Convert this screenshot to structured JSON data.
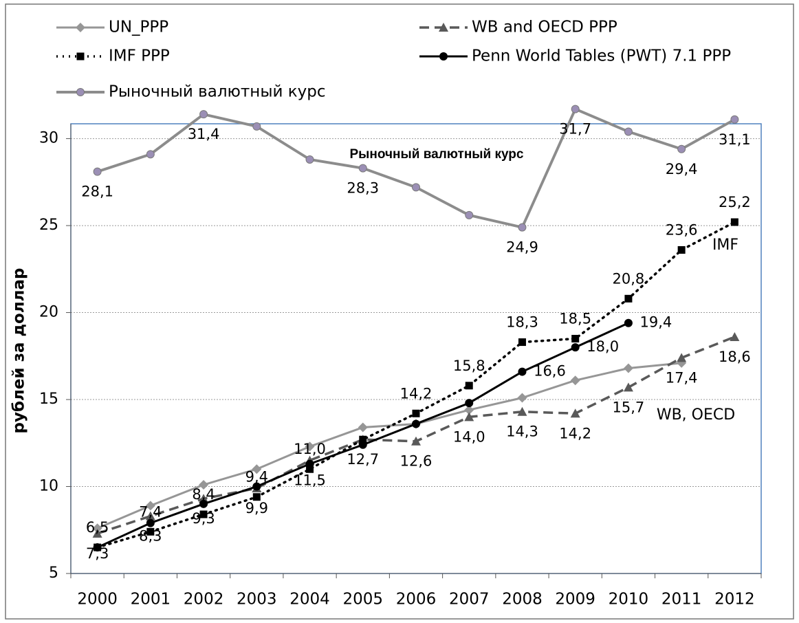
{
  "chart_data": {
    "type": "line",
    "y_label": "рублей за доллар",
    "categories": [
      "2000",
      "2001",
      "2002",
      "2003",
      "2004",
      "2005",
      "2006",
      "2007",
      "2008",
      "2009",
      "2010",
      "2011",
      "2012"
    ],
    "ylim": [
      5,
      32
    ],
    "yticks": [
      5,
      10,
      15,
      20,
      25,
      30
    ],
    "grid": true,
    "series": [
      {
        "name": "UN_PPP",
        "color": "#969696",
        "dash": "solid",
        "marker": "diamond",
        "values": [
          7.6,
          8.9,
          10.1,
          11.0,
          12.3,
          13.4,
          13.6,
          14.4,
          15.1,
          16.1,
          16.8,
          17.1,
          null
        ]
      },
      {
        "name": "WB and OECD PPP",
        "color": "#595959",
        "dash": "dashed",
        "marker": "triangle",
        "values": [
          7.3,
          8.3,
          9.3,
          9.9,
          11.5,
          12.7,
          12.6,
          14.0,
          14.3,
          14.2,
          15.7,
          17.4,
          18.6
        ],
        "value_labels": [
          "7,3",
          "8,3",
          "9,3",
          "9,9",
          "11,5",
          "12,7",
          "12,6",
          "14,0",
          "14,3",
          "14,2",
          "15,7",
          "17,4",
          "18,6"
        ]
      },
      {
        "name": "IMF PPP",
        "color": "#000000",
        "dash": "dotted",
        "marker": "square",
        "values": [
          6.5,
          7.4,
          8.4,
          9.4,
          11.0,
          12.7,
          14.2,
          15.8,
          18.3,
          18.5,
          20.8,
          23.6,
          25.2
        ],
        "value_labels": [
          "6,5",
          "7,4",
          "8,4",
          "9,4",
          "11,0",
          null,
          "14,2",
          "15,8",
          "18,3",
          "18,5",
          "20,8",
          "23,6",
          "25,2"
        ]
      },
      {
        "name": "Penn World Tables (PWT) 7.1 PPP",
        "color": "#000000",
        "dash": "solid",
        "marker": "circle",
        "values": [
          6.5,
          7.9,
          9.0,
          10.0,
          11.3,
          12.4,
          13.6,
          14.8,
          16.6,
          18.0,
          19.4,
          null,
          null
        ],
        "value_labels": [
          null,
          null,
          null,
          null,
          null,
          null,
          null,
          null,
          "16,6",
          "18,0",
          "19,4",
          null,
          null
        ]
      },
      {
        "name": "Рыночный валютный курс",
        "color": "#8c8c8c",
        "marker_color": "#9b8fb5",
        "dash": "solid",
        "marker": "circle",
        "values": [
          28.1,
          29.1,
          31.4,
          30.7,
          28.8,
          28.3,
          27.2,
          25.6,
          24.9,
          31.7,
          30.4,
          29.4,
          31.1
        ],
        "value_labels": [
          "28,1",
          null,
          "31,4",
          null,
          null,
          "28,3",
          null,
          null,
          "24,9",
          "31,7",
          null,
          "29,4",
          "31,1"
        ]
      }
    ],
    "annotations": [
      "Рыночный валютный курс",
      "IMF",
      "WB, OECD"
    ]
  }
}
